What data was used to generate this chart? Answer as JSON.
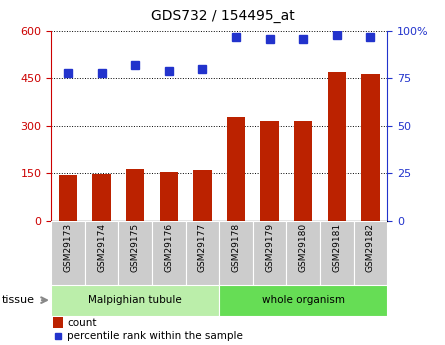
{
  "title": "GDS732 / 154495_at",
  "categories": [
    "GSM29173",
    "GSM29174",
    "GSM29175",
    "GSM29176",
    "GSM29177",
    "GSM29178",
    "GSM29179",
    "GSM29180",
    "GSM29181",
    "GSM29182"
  ],
  "bar_values": [
    145,
    148,
    165,
    153,
    160,
    328,
    315,
    315,
    470,
    463
  ],
  "percentile_values": [
    78,
    78,
    82,
    79,
    80,
    97,
    96,
    96,
    98,
    97
  ],
  "bar_color": "#bb2200",
  "dot_color": "#2233cc",
  "ylim_left": [
    0,
    600
  ],
  "ylim_right": [
    0,
    100
  ],
  "yticks_left": [
    0,
    150,
    300,
    450,
    600
  ],
  "yticks_right": [
    0,
    25,
    50,
    75,
    100
  ],
  "tissue_groups": [
    {
      "label": "Malpighian tubule",
      "start": 0,
      "end": 5,
      "color": "#bbeeaa"
    },
    {
      "label": "whole organism",
      "start": 5,
      "end": 10,
      "color": "#66dd55"
    }
  ],
  "legend_count_label": "count",
  "legend_percentile_label": "percentile rank within the sample",
  "tissue_label": "tissue",
  "tick_label_bg": "#cccccc"
}
